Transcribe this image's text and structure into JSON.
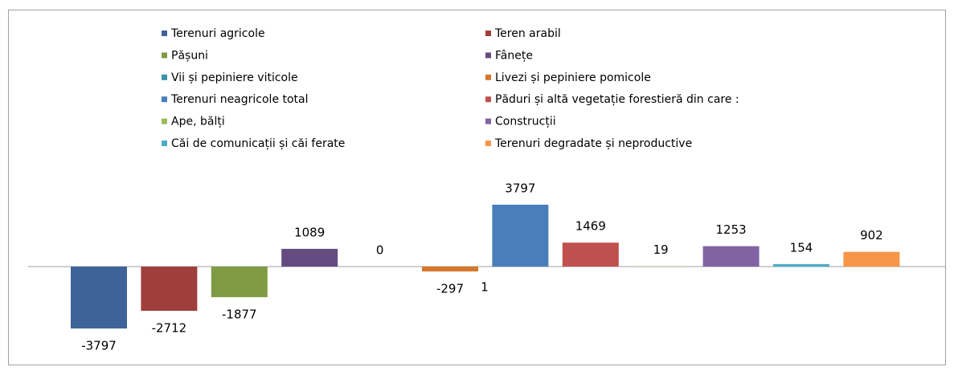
{
  "chart_data": {
    "type": "bar",
    "categories": [
      ""
    ],
    "series": [
      {
        "name": "Terenuri agricole",
        "color": "#3d6399",
        "values": [
          -3797
        ]
      },
      {
        "name": "Teren arabil",
        "color": "#9e3f3c",
        "values": [
          -2712
        ]
      },
      {
        "name": "Pășuni",
        "color": "#7f9b44",
        "values": [
          -1877
        ]
      },
      {
        "name": "Fânețe",
        "color": "#644c80",
        "values": [
          1089
        ]
      },
      {
        "name": "Vii și pepiniere viticole",
        "color": "#3c91aa",
        "values": [
          0
        ]
      },
      {
        "name": "Livezi și pepiniere pomicole",
        "color": "#d5772c",
        "values": [
          -297
        ]
      },
      {
        "name": "Terenuri neagricole total",
        "color": "#4a7ebb",
        "values": [
          3797
        ]
      },
      {
        "name": "Păduri și altă vegetație forestieră din care :",
        "color": "#c0504d",
        "values": [
          1469
        ]
      },
      {
        "name": "Ape, bălți",
        "color": "#9bbb59",
        "values": [
          19
        ]
      },
      {
        "name": "Construcții",
        "color": "#8064a2",
        "values": [
          1253
        ]
      },
      {
        "name": "Căi de comunicații și căi ferate",
        "color": "#4bacc6",
        "values": [
          154
        ]
      },
      {
        "name": "Terenuri degradate și neproductive",
        "color": "#f79646",
        "values": [
          902
        ]
      }
    ],
    "annotations": [
      "1"
    ],
    "ylim": [
      -5000,
      5000
    ],
    "legend": "top"
  }
}
